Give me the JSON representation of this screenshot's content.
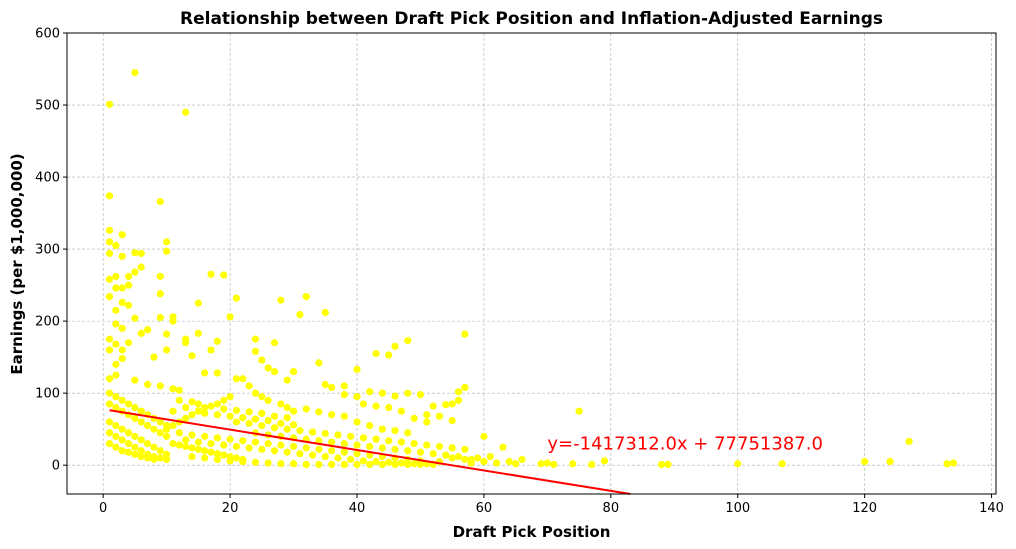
{
  "chart_data": {
    "type": "scatter",
    "title": "Relationship between Draft Pick Position and Inflation-Adjusted Earnings",
    "xlabel": "Draft Pick Position",
    "ylabel": "Earnings (per $1,000,000)",
    "xlim": [
      -5.7,
      140.7
    ],
    "ylim": [
      -40,
      600
    ],
    "xticks": [
      0,
      20,
      40,
      60,
      80,
      100,
      120,
      140
    ],
    "yticks": [
      0,
      100,
      200,
      300,
      400,
      500,
      600
    ],
    "grid": true,
    "point_color": "#ffff00",
    "line_color": "#ff0000",
    "equation_label": "y=-1417312.0x + 77751387.0",
    "regression": {
      "slope_millions": -1.417312,
      "intercept_millions": 77.751387,
      "x_range": [
        1,
        135
      ]
    },
    "points": [
      [
        1,
        501
      ],
      [
        5,
        545
      ],
      [
        13,
        490
      ],
      [
        1,
        374
      ],
      [
        9,
        366
      ],
      [
        1,
        326
      ],
      [
        1,
        310
      ],
      [
        3,
        320
      ],
      [
        10,
        310
      ],
      [
        10,
        297
      ],
      [
        2,
        305
      ],
      [
        5,
        295
      ],
      [
        6,
        294
      ],
      [
        3,
        290
      ],
      [
        1,
        294
      ],
      [
        6,
        275
      ],
      [
        5,
        268
      ],
      [
        9,
        262
      ],
      [
        2,
        262
      ],
      [
        4,
        262
      ],
      [
        1,
        258
      ],
      [
        2,
        246
      ],
      [
        3,
        246
      ],
      [
        4,
        250
      ],
      [
        9,
        238
      ],
      [
        1,
        234
      ],
      [
        3,
        226
      ],
      [
        4,
        222
      ],
      [
        17,
        265
      ],
      [
        19,
        264
      ],
      [
        21,
        232
      ],
      [
        15,
        225
      ],
      [
        28,
        229
      ],
      [
        32,
        234
      ],
      [
        20,
        206
      ],
      [
        31,
        209
      ],
      [
        35,
        212
      ],
      [
        11,
        206
      ],
      [
        11,
        200
      ],
      [
        2,
        215
      ],
      [
        5,
        204
      ],
      [
        9,
        205
      ],
      [
        2,
        196
      ],
      [
        3,
        190
      ],
      [
        7,
        188
      ],
      [
        6,
        183
      ],
      [
        10,
        182
      ],
      [
        15,
        183
      ],
      [
        18,
        172
      ],
      [
        13,
        175
      ],
      [
        24,
        175
      ],
      [
        27,
        170
      ],
      [
        57,
        182
      ],
      [
        48,
        173
      ],
      [
        46,
        165
      ],
      [
        1,
        175
      ],
      [
        2,
        168
      ],
      [
        4,
        170
      ],
      [
        1,
        160
      ],
      [
        3,
        160
      ],
      [
        10,
        160
      ],
      [
        13,
        170
      ],
      [
        17,
        160
      ],
      [
        24,
        158
      ],
      [
        25,
        146
      ],
      [
        14,
        152
      ],
      [
        8,
        150
      ],
      [
        3,
        148
      ],
      [
        2,
        140
      ],
      [
        43,
        155
      ],
      [
        45,
        153
      ],
      [
        26,
        135
      ],
      [
        27,
        130
      ],
      [
        30,
        130
      ],
      [
        21,
        120
      ],
      [
        29,
        118
      ],
      [
        34,
        142
      ],
      [
        35,
        112
      ],
      [
        36,
        108
      ],
      [
        38,
        110
      ],
      [
        40,
        133
      ],
      [
        16,
        128
      ],
      [
        18,
        128
      ],
      [
        1,
        120
      ],
      [
        2,
        125
      ],
      [
        5,
        118
      ],
      [
        7,
        112
      ],
      [
        9,
        110
      ],
      [
        11,
        106
      ],
      [
        12,
        104
      ],
      [
        38,
        98
      ],
      [
        40,
        95
      ],
      [
        42,
        102
      ],
      [
        44,
        100
      ],
      [
        46,
        96
      ],
      [
        48,
        100
      ],
      [
        50,
        98
      ],
      [
        52,
        82
      ],
      [
        54,
        84
      ],
      [
        55,
        85
      ],
      [
        56,
        102
      ],
      [
        57,
        108
      ],
      [
        56,
        90
      ],
      [
        75,
        75
      ],
      [
        51,
        70
      ],
      [
        53,
        68
      ],
      [
        55,
        62
      ],
      [
        41,
        85
      ],
      [
        43,
        82
      ],
      [
        45,
        80
      ],
      [
        47,
        75
      ],
      [
        49,
        65
      ],
      [
        51,
        60
      ],
      [
        32,
        78
      ],
      [
        34,
        74
      ],
      [
        36,
        70
      ],
      [
        38,
        68
      ],
      [
        40,
        60
      ],
      [
        42,
        55
      ],
      [
        44,
        50
      ],
      [
        46,
        48
      ],
      [
        48,
        45
      ],
      [
        22,
        120
      ],
      [
        23,
        110
      ],
      [
        24,
        100
      ],
      [
        25,
        95
      ],
      [
        26,
        90
      ],
      [
        28,
        85
      ],
      [
        29,
        80
      ],
      [
        30,
        75
      ],
      [
        20,
        95
      ],
      [
        19,
        90
      ],
      [
        18,
        85
      ],
      [
        16,
        80
      ],
      [
        15,
        75
      ],
      [
        14,
        70
      ],
      [
        13,
        65
      ],
      [
        12,
        60
      ],
      [
        11,
        55
      ],
      [
        10,
        50
      ],
      [
        1,
        100
      ],
      [
        2,
        95
      ],
      [
        3,
        90
      ],
      [
        4,
        85
      ],
      [
        5,
        80
      ],
      [
        6,
        75
      ],
      [
        7,
        70
      ],
      [
        8,
        65
      ],
      [
        9,
        60
      ],
      [
        10,
        55
      ],
      [
        1,
        85
      ],
      [
        2,
        80
      ],
      [
        3,
        75
      ],
      [
        4,
        70
      ],
      [
        5,
        65
      ],
      [
        6,
        60
      ],
      [
        7,
        55
      ],
      [
        8,
        50
      ],
      [
        9,
        45
      ],
      [
        10,
        40
      ],
      [
        1,
        60
      ],
      [
        2,
        55
      ],
      [
        3,
        50
      ],
      [
        4,
        45
      ],
      [
        5,
        40
      ],
      [
        6,
        35
      ],
      [
        7,
        30
      ],
      [
        8,
        25
      ],
      [
        9,
        20
      ],
      [
        10,
        15
      ],
      [
        1,
        45
      ],
      [
        2,
        40
      ],
      [
        3,
        35
      ],
      [
        4,
        30
      ],
      [
        5,
        25
      ],
      [
        6,
        20
      ],
      [
        7,
        15
      ],
      [
        8,
        12
      ],
      [
        9,
        10
      ],
      [
        10,
        8
      ],
      [
        1,
        30
      ],
      [
        2,
        25
      ],
      [
        3,
        20
      ],
      [
        4,
        18
      ],
      [
        5,
        15
      ],
      [
        6,
        12
      ],
      [
        7,
        10
      ],
      [
        8,
        8
      ],
      [
        11,
        30
      ],
      [
        12,
        28
      ],
      [
        13,
        26
      ],
      [
        14,
        24
      ],
      [
        15,
        22
      ],
      [
        16,
        20
      ],
      [
        17,
        18
      ],
      [
        18,
        16
      ],
      [
        19,
        14
      ],
      [
        20,
        12
      ],
      [
        21,
        10
      ],
      [
        22,
        8
      ],
      [
        12,
        45
      ],
      [
        14,
        42
      ],
      [
        16,
        40
      ],
      [
        18,
        38
      ],
      [
        20,
        36
      ],
      [
        22,
        34
      ],
      [
        24,
        32
      ],
      [
        26,
        30
      ],
      [
        28,
        28
      ],
      [
        30,
        26
      ],
      [
        32,
        24
      ],
      [
        34,
        22
      ],
      [
        36,
        20
      ],
      [
        38,
        18
      ],
      [
        40,
        16
      ],
      [
        42,
        14
      ],
      [
        44,
        12
      ],
      [
        46,
        10
      ],
      [
        48,
        8
      ],
      [
        50,
        6
      ],
      [
        13,
        35
      ],
      [
        15,
        32
      ],
      [
        17,
        30
      ],
      [
        19,
        28
      ],
      [
        21,
        26
      ],
      [
        23,
        24
      ],
      [
        25,
        22
      ],
      [
        27,
        20
      ],
      [
        29,
        18
      ],
      [
        31,
        16
      ],
      [
        33,
        14
      ],
      [
        35,
        12
      ],
      [
        37,
        10
      ],
      [
        39,
        8
      ],
      [
        41,
        6
      ],
      [
        43,
        5
      ],
      [
        45,
        4
      ],
      [
        47,
        3
      ],
      [
        49,
        2
      ],
      [
        51,
        2
      ],
      [
        21,
        60
      ],
      [
        23,
        58
      ],
      [
        25,
        55
      ],
      [
        27,
        52
      ],
      [
        29,
        50
      ],
      [
        31,
        48
      ],
      [
        33,
        46
      ],
      [
        35,
        44
      ],
      [
        37,
        42
      ],
      [
        39,
        40
      ],
      [
        41,
        38
      ],
      [
        43,
        36
      ],
      [
        45,
        34
      ],
      [
        47,
        32
      ],
      [
        49,
        30
      ],
      [
        51,
        28
      ],
      [
        53,
        26
      ],
      [
        55,
        24
      ],
      [
        57,
        22
      ],
      [
        59,
        10
      ],
      [
        24,
        45
      ],
      [
        26,
        42
      ],
      [
        28,
        40
      ],
      [
        30,
        38
      ],
      [
        32,
        36
      ],
      [
        34,
        34
      ],
      [
        36,
        32
      ],
      [
        38,
        30
      ],
      [
        40,
        28
      ],
      [
        42,
        26
      ],
      [
        44,
        24
      ],
      [
        46,
        22
      ],
      [
        48,
        20
      ],
      [
        50,
        18
      ],
      [
        52,
        16
      ],
      [
        54,
        14
      ],
      [
        56,
        12
      ],
      [
        58,
        8
      ],
      [
        60,
        5
      ],
      [
        62,
        3
      ],
      [
        14,
        12
      ],
      [
        16,
        10
      ],
      [
        18,
        8
      ],
      [
        20,
        6
      ],
      [
        22,
        5
      ],
      [
        24,
        4
      ],
      [
        26,
        3
      ],
      [
        28,
        2
      ],
      [
        30,
        2
      ],
      [
        32,
        1
      ],
      [
        34,
        1
      ],
      [
        36,
        1
      ],
      [
        38,
        1
      ],
      [
        40,
        1
      ],
      [
        42,
        1
      ],
      [
        44,
        1
      ],
      [
        46,
        1
      ],
      [
        48,
        1
      ],
      [
        50,
        1
      ],
      [
        52,
        1
      ],
      [
        12,
        90
      ],
      [
        14,
        88
      ],
      [
        16,
        72
      ],
      [
        18,
        70
      ],
      [
        20,
        68
      ],
      [
        22,
        66
      ],
      [
        24,
        64
      ],
      [
        26,
        62
      ],
      [
        28,
        58
      ],
      [
        30,
        56
      ],
      [
        11,
        75
      ],
      [
        13,
        80
      ],
      [
        15,
        85
      ],
      [
        17,
        82
      ],
      [
        19,
        78
      ],
      [
        21,
        76
      ],
      [
        23,
        74
      ],
      [
        25,
        72
      ],
      [
        27,
        68
      ],
      [
        29,
        66
      ],
      [
        60,
        40
      ],
      [
        63,
        25
      ],
      [
        66,
        8
      ],
      [
        61,
        12
      ],
      [
        64,
        5
      ],
      [
        65,
        2
      ],
      [
        55,
        10
      ],
      [
        57,
        8
      ],
      [
        53,
        5
      ],
      [
        58,
        3
      ],
      [
        69,
        2
      ],
      [
        70,
        3
      ],
      [
        71,
        1
      ],
      [
        74,
        2
      ],
      [
        77,
        1
      ],
      [
        79,
        6
      ],
      [
        88,
        1
      ],
      [
        89,
        1
      ],
      [
        100,
        2
      ],
      [
        107,
        2
      ],
      [
        120,
        5
      ],
      [
        124,
        5
      ],
      [
        127,
        33
      ],
      [
        133,
        2
      ],
      [
        134,
        3
      ]
    ]
  }
}
